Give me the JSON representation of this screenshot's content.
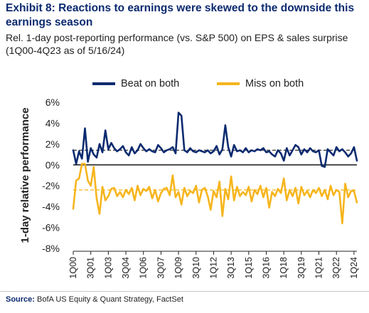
{
  "header": {
    "title": "Exhibit 8: Reactions to earnings were skewed to the downside this earnings season",
    "subtitle": "Rel. 1-day post-reporting performance (vs. S&P 500) on EPS & sales surprise (1Q00-4Q23 as of 5/16/24)"
  },
  "source": {
    "label": "Source:",
    "text": "BofA US Equity & Quant Strategy, FactSet"
  },
  "colors": {
    "beat": "#0b2a6f",
    "miss": "#f6b51d",
    "axis": "#222222"
  },
  "chart_data": {
    "type": "line",
    "ylabel": "1-day relative performance",
    "xlabel": "",
    "ylim": [
      -8,
      6
    ],
    "y_ticks": [
      6,
      4,
      2,
      0,
      -2,
      -4,
      -6,
      -8
    ],
    "y_tick_labels": [
      "6%",
      "4%",
      "2%",
      "0%",
      "-2%",
      "-4%",
      "-6%",
      "-8%"
    ],
    "x_tick_labels": [
      "1Q00",
      "3Q01",
      "1Q03",
      "3Q04",
      "1Q06",
      "3Q07",
      "1Q09",
      "3Q10",
      "1Q12",
      "3Q13",
      "1Q15",
      "3Q16",
      "1Q18",
      "3Q19",
      "1Q21",
      "3Q22",
      "1Q24"
    ],
    "x_tick_indices": [
      0,
      6,
      12,
      18,
      24,
      30,
      36,
      42,
      48,
      54,
      60,
      66,
      72,
      78,
      84,
      90,
      96
    ],
    "grid": false,
    "legend_position": "top",
    "series": [
      {
        "name": "Beat on both",
        "color": "#0b2a6f",
        "average": 1.4,
        "values": [
          1.4,
          0.1,
          1.3,
          0.6,
          3.5,
          0.3,
          1.6,
          1.0,
          0.7,
          2.0,
          1.2,
          3.3,
          1.5,
          2.1,
          1.6,
          1.3,
          1.5,
          1.8,
          1.2,
          0.9,
          1.7,
          1.1,
          1.4,
          2.0,
          1.6,
          1.3,
          1.5,
          1.3,
          1.2,
          1.9,
          1.6,
          1.2,
          1.4,
          1.5,
          1.7,
          1.1,
          5.0,
          4.7,
          1.4,
          1.2,
          1.6,
          1.3,
          1.2,
          1.4,
          1.3,
          1.2,
          1.4,
          1.1,
          1.3,
          1.8,
          1.0,
          1.5,
          3.8,
          1.7,
          0.8,
          1.9,
          1.3,
          1.4,
          1.2,
          1.6,
          1.2,
          1.4,
          1.3,
          1.5,
          1.4,
          1.6,
          1.2,
          1.3,
          1.0,
          0.8,
          1.4,
          1.1,
          0.4,
          1.6,
          0.9,
          1.4,
          1.9,
          1.7,
          1.0,
          1.5,
          1.2,
          1.6,
          1.3,
          1.2,
          1.4,
          -0.1,
          -0.2,
          1.5,
          1.2,
          0.9,
          1.7,
          1.3,
          1.5,
          1.2,
          0.8,
          1.1,
          1.7,
          0.4
        ]
      },
      {
        "name": "Miss on both",
        "color": "#f6b51d",
        "average": -2.4,
        "values": [
          -4.2,
          -1.5,
          -1.3,
          0.1,
          0.1,
          -1.5,
          -2.0,
          -0.2,
          -3.2,
          -4.7,
          -2.1,
          -3.4,
          -3.0,
          -2.3,
          -2.2,
          -3.0,
          -2.6,
          -3.1,
          -2.4,
          -2.8,
          -2.2,
          -3.4,
          -2.0,
          -2.9,
          -2.3,
          -2.5,
          -2.1,
          -3.2,
          -2.4,
          -3.5,
          -2.7,
          -2.3,
          -2.2,
          -2.9,
          -1.0,
          -3.1,
          -2.6,
          -3.8,
          -2.2,
          -3.0,
          -2.5,
          -2.7,
          -2.0,
          -3.6,
          -2.4,
          -2.2,
          -3.0,
          -4.3,
          -2.5,
          -3.1,
          -1.6,
          -4.9,
          -2.3,
          -3.3,
          -1.1,
          -3.4,
          -2.1,
          -3.0,
          -2.6,
          -2.9,
          -2.1,
          -3.5,
          -2.4,
          -2.8,
          -2.0,
          -3.1,
          -2.2,
          -4.1,
          -2.6,
          -3.0,
          -2.3,
          -2.7,
          -1.3,
          -3.4,
          -2.4,
          -3.0,
          -2.2,
          -3.7,
          -2.1,
          -2.9,
          -2.5,
          -3.1,
          -2.4,
          -2.7,
          -2.2,
          -3.0,
          -2.4,
          -3.3,
          -2.0,
          -2.9,
          -2.4,
          -2.6,
          -5.6,
          -1.8,
          -3.1,
          -2.5,
          -2.5,
          -3.6
        ]
      }
    ]
  }
}
